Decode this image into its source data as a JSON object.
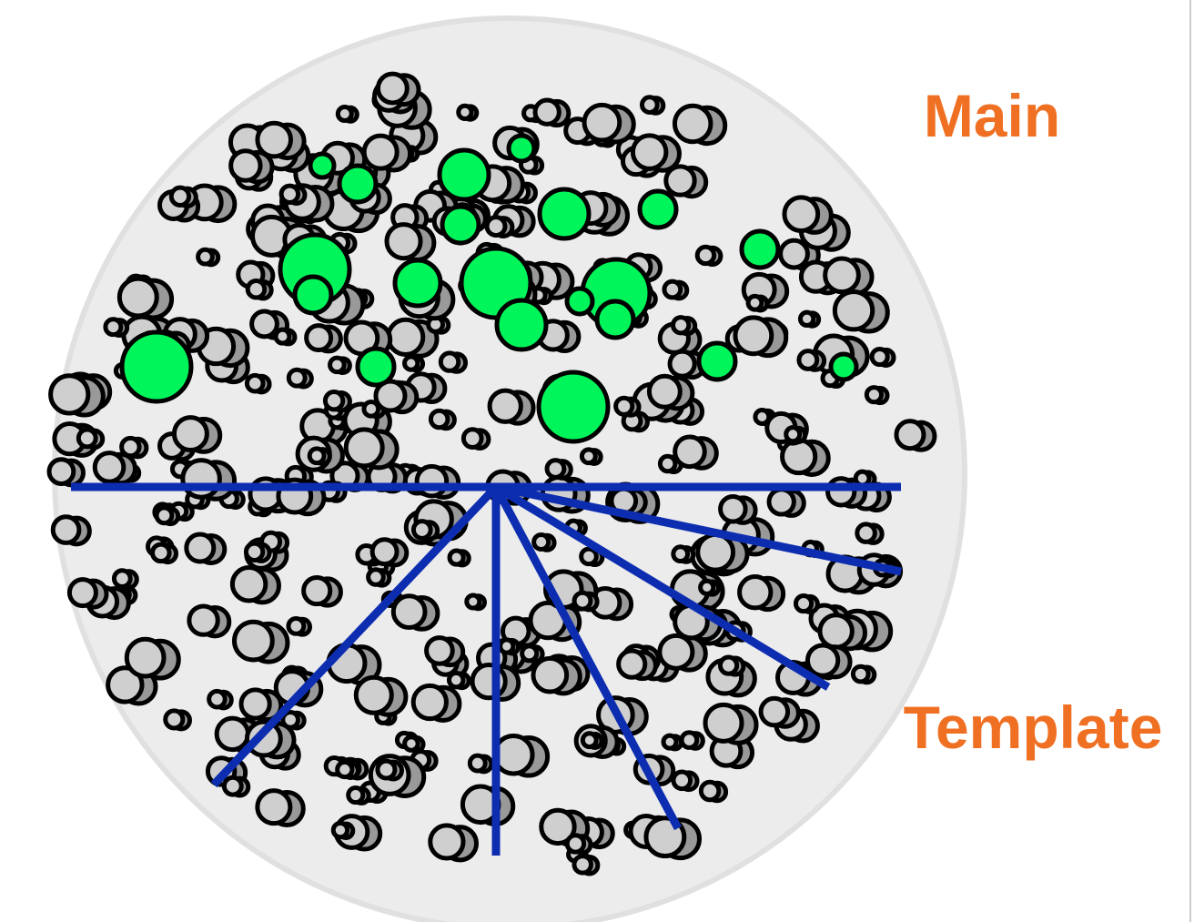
{
  "labels": {
    "main": "Main",
    "template": "Template"
  }
}
